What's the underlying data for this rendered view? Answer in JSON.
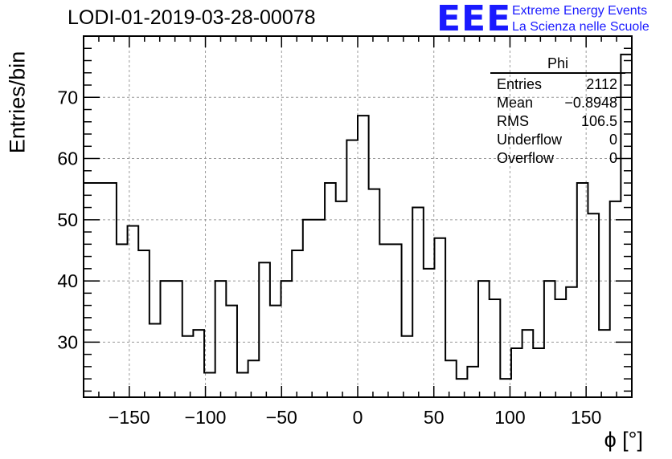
{
  "title": "LODI-01-2019-03-28-00078",
  "logo": {
    "mark": "EEE",
    "line1": "Extreme Energy Events",
    "line2": "La Scienza nelle Scuole",
    "color": "#1a1aff"
  },
  "stats_box": {
    "name": "Phi",
    "rows": [
      {
        "label": "Entries",
        "value": "2112"
      },
      {
        "label": "Mean",
        "value": "−0.8948"
      },
      {
        "label": "RMS",
        "value": "106.5"
      },
      {
        "label": "Underflow",
        "value": "0"
      },
      {
        "label": "Overflow",
        "value": "0"
      }
    ]
  },
  "chart_data": {
    "type": "bar",
    "style": "step-histogram",
    "title": "LODI-01-2019-03-28-00078",
    "xlabel": "ϕ [°]",
    "ylabel": "Entries/bin",
    "xlim": [
      -180,
      180
    ],
    "ylim": [
      21,
      80
    ],
    "bin_width": 7.2,
    "grid": true,
    "x_ticks": [
      -150,
      -100,
      -50,
      0,
      50,
      100,
      150
    ],
    "x_tick_labels": [
      "−150",
      "−100",
      "−50",
      "0",
      "50",
      "100",
      "150"
    ],
    "y_ticks": [
      30,
      40,
      50,
      60,
      70
    ],
    "y_tick_labels": [
      "30",
      "40",
      "50",
      "60",
      "70"
    ],
    "bin_low_edges": [
      -180,
      -172.8,
      -165.6,
      -158.4,
      -151.2,
      -144,
      -136.8,
      -129.6,
      -122.4,
      -115.2,
      -108,
      -100.8,
      -93.6,
      -86.4,
      -79.2,
      -72,
      -64.8,
      -57.6,
      -50.4,
      -43.2,
      -36,
      -28.8,
      -21.6,
      -14.4,
      -7.2,
      0,
      7.2,
      14.4,
      21.6,
      28.8,
      36,
      43.2,
      50.4,
      57.6,
      64.8,
      72,
      79.2,
      86.4,
      93.6,
      100.8,
      108,
      115.2,
      122.4,
      129.6,
      136.8,
      144,
      151.2,
      158.4,
      165.6,
      172.8
    ],
    "values": [
      56,
      56,
      56,
      46,
      49,
      45,
      33,
      40,
      40,
      31,
      32,
      25,
      40,
      36,
      25,
      27,
      43,
      36,
      40,
      45,
      50,
      50,
      56,
      53,
      63,
      67,
      55,
      46,
      46,
      31,
      52,
      42,
      47,
      27,
      24,
      26,
      40,
      37,
      24,
      29,
      32,
      29,
      40,
      37,
      39,
      56,
      51,
      32,
      53,
      77
    ],
    "line_color": "#000000"
  }
}
